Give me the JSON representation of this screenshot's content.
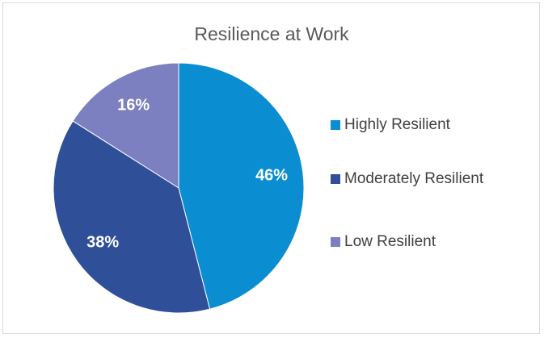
{
  "chart_data": {
    "type": "pie",
    "title": "Resilience at Work",
    "categories": [
      "Highly Resilient",
      "Moderately Resilient",
      "Low Resilient"
    ],
    "values": [
      46,
      38,
      16
    ],
    "value_labels": [
      "46%",
      "38%",
      "16%"
    ],
    "colors": [
      "#0b8ed1",
      "#2f4f99",
      "#7c7fc0"
    ],
    "legend": "right"
  }
}
